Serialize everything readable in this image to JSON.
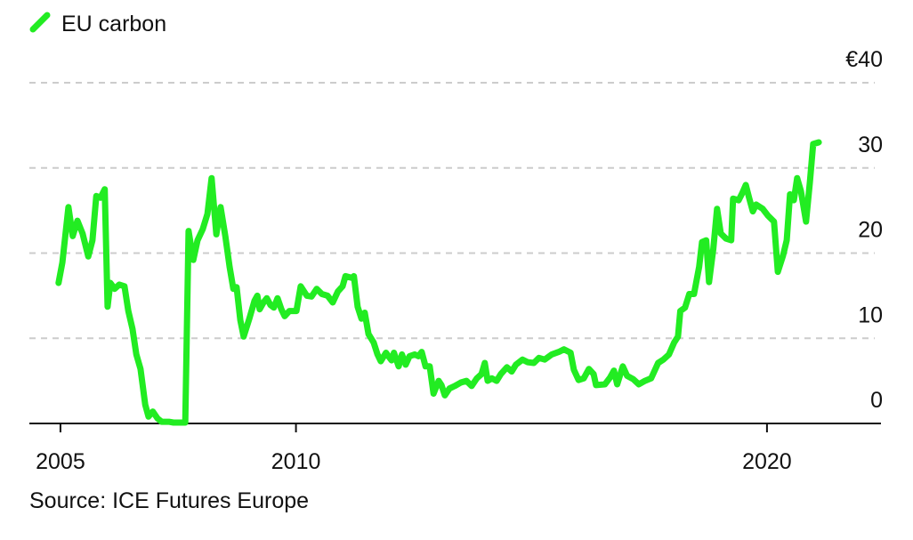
{
  "chart_data": {
    "type": "line",
    "legend_title": "EU carbon",
    "source": "Source: ICE Futures Europe",
    "xlim": [
      2004.34,
      2022.42
    ],
    "xticks": [
      2005,
      2010,
      2020
    ],
    "ylim": [
      0,
      40
    ],
    "yticks": [
      0,
      10,
      20,
      30,
      {
        "value": 40,
        "label": "€40"
      }
    ],
    "grid": true,
    "series": [
      {
        "name": "EU carbon",
        "color": "#22ec22",
        "x": [
          2004.96,
          2005.04,
          2005.17,
          2005.26,
          2005.36,
          2005.47,
          2005.59,
          2005.68,
          2005.76,
          2005.85,
          2005.94,
          2006.0,
          2006.06,
          2006.15,
          2006.25,
          2006.36,
          2006.44,
          2006.53,
          2006.61,
          2006.7,
          2006.8,
          2006.87,
          2006.96,
          2007.06,
          2007.15,
          2007.3,
          2007.4,
          2007.65,
          2007.72,
          2007.82,
          2007.91,
          2008.02,
          2008.12,
          2008.21,
          2008.31,
          2008.4,
          2008.5,
          2008.59,
          2008.67,
          2008.74,
          2008.82,
          2008.89,
          2009.01,
          2009.12,
          2009.18,
          2009.23,
          2009.31,
          2009.38,
          2009.46,
          2009.53,
          2009.61,
          2009.69,
          2009.76,
          2009.86,
          2010.01,
          2010.1,
          2010.23,
          2010.33,
          2010.44,
          2010.55,
          2010.67,
          2010.78,
          2010.89,
          2010.99,
          2011.05,
          2011.18,
          2011.23,
          2011.31,
          2011.39,
          2011.46,
          2011.54,
          2011.65,
          2011.73,
          2011.8,
          2011.91,
          2012.03,
          2012.08,
          2012.18,
          2012.25,
          2012.33,
          2012.41,
          2012.52,
          2012.6,
          2012.67,
          2012.75,
          2012.84,
          2012.92,
          2013.03,
          2013.09,
          2013.16,
          2013.26,
          2013.37,
          2013.5,
          2013.62,
          2013.73,
          2013.84,
          2013.94,
          2014.01,
          2014.07,
          2014.16,
          2014.26,
          2014.35,
          2014.48,
          2014.58,
          2014.67,
          2014.81,
          2014.92,
          2015.05,
          2015.16,
          2015.28,
          2015.43,
          2015.58,
          2015.69,
          2015.83,
          2015.9,
          2016.0,
          2016.11,
          2016.22,
          2016.32,
          2016.37,
          2016.56,
          2016.67,
          2016.75,
          2016.82,
          2016.94,
          2017.03,
          2017.16,
          2017.28,
          2017.41,
          2017.54,
          2017.69,
          2017.8,
          2017.92,
          2018.03,
          2018.11,
          2018.16,
          2018.26,
          2018.35,
          2018.45,
          2018.56,
          2018.62,
          2018.71,
          2018.77,
          2018.86,
          2018.94,
          2019.02,
          2019.13,
          2019.24,
          2019.28,
          2019.4,
          2019.47,
          2019.55,
          2019.62,
          2019.7,
          2019.77,
          2019.91,
          2020.02,
          2020.15,
          2020.23,
          2020.34,
          2020.42,
          2020.49,
          2020.57,
          2020.64,
          2020.72,
          2020.83,
          2020.91,
          2020.98,
          2021.1
        ],
        "values": [
          16.5,
          18.9,
          25.4,
          22.0,
          23.8,
          22.3,
          19.6,
          21.5,
          26.7,
          26.5,
          27.5,
          13.7,
          16.5,
          15.8,
          16.3,
          16.1,
          13.2,
          11.1,
          8.1,
          6.4,
          2.2,
          0.8,
          1.4,
          0.6,
          0.2,
          0.2,
          0.1,
          0.1,
          22.6,
          19.2,
          21.5,
          22.8,
          24.6,
          28.8,
          22.2,
          25.4,
          22.0,
          18.4,
          15.8,
          16.0,
          12.1,
          10.2,
          12.3,
          14.4,
          15.0,
          13.4,
          14.2,
          14.7,
          13.9,
          13.6,
          14.7,
          13.4,
          12.6,
          13.2,
          13.2,
          16.1,
          15.0,
          14.9,
          15.8,
          15.2,
          15.0,
          14.2,
          15.5,
          16.1,
          17.3,
          17.1,
          17.3,
          13.7,
          12.3,
          13.0,
          10.5,
          9.5,
          8.1,
          7.3,
          8.3,
          7.4,
          8.3,
          6.7,
          8.1,
          6.9,
          7.9,
          8.1,
          7.9,
          8.4,
          6.7,
          6.7,
          3.5,
          5.0,
          4.5,
          3.3,
          4.1,
          4.4,
          4.8,
          5.0,
          4.4,
          5.3,
          5.8,
          7.1,
          5.0,
          5.3,
          5.0,
          5.8,
          6.6,
          6.1,
          6.9,
          7.5,
          7.2,
          7.1,
          7.7,
          7.5,
          8.1,
          8.4,
          8.7,
          8.3,
          6.3,
          5.1,
          5.3,
          6.4,
          5.8,
          4.5,
          4.6,
          5.4,
          6.2,
          4.6,
          6.7,
          5.6,
          5.2,
          4.6,
          5.0,
          5.3,
          7.1,
          7.5,
          8.1,
          9.5,
          10.2,
          13.2,
          13.6,
          15.2,
          15.2,
          18.4,
          21.3,
          21.5,
          16.6,
          20.5,
          25.2,
          22.3,
          21.7,
          21.5,
          26.4,
          26.2,
          27.0,
          28.0,
          26.5,
          24.9,
          25.7,
          25.2,
          24.4,
          23.7,
          17.8,
          19.7,
          21.5,
          26.9,
          26.2,
          28.8,
          27.3,
          23.7,
          28.3,
          32.8,
          33.0
        ]
      }
    ]
  }
}
